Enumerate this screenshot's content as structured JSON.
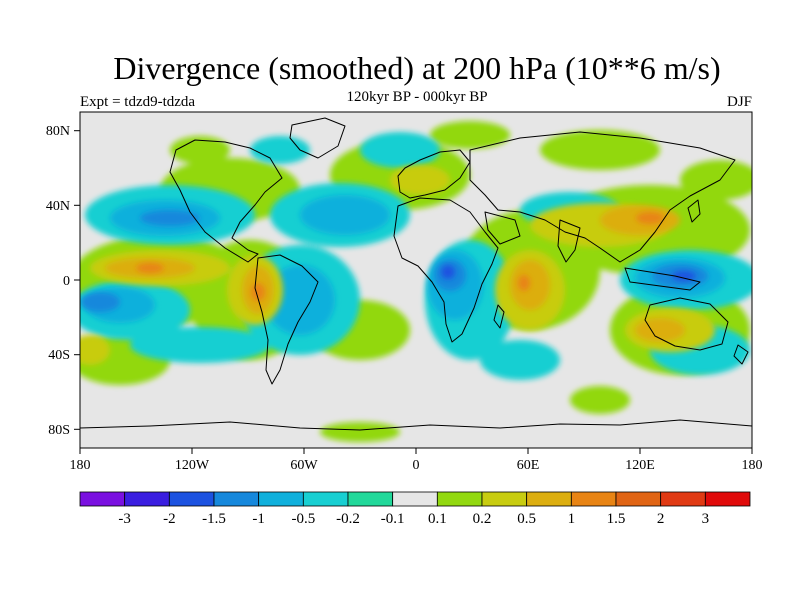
{
  "header": {
    "title": "Divergence (smoothed) at 200 hPa (10**6 m/s)",
    "subtitle": "120kyr BP - 000kyr BP",
    "experiment": "Expt = tdzd9-tdzda",
    "season": "DJF"
  },
  "axes": {
    "lat_labels": [
      "80N",
      "40N",
      "0",
      "40S",
      "80S"
    ],
    "lon_labels": [
      "180",
      "120W",
      "60W",
      "0",
      "60E",
      "120E",
      "180"
    ]
  },
  "colorbar": {
    "labels": [
      "-3",
      "-2",
      "-1.5",
      "-1",
      "-0.5",
      "-0.2",
      "-0.1",
      "0.1",
      "0.2",
      "0.5",
      "1",
      "1.5",
      "2",
      "3"
    ],
    "colors": [
      "#7a10e0",
      "#3a1ee0",
      "#1c52e0",
      "#1688dc",
      "#10b0dc",
      "#18cfd2",
      "#22d89a",
      "#e6e6e6",
      "#92d810",
      "#c8cc10",
      "#dcae10",
      "#e88414",
      "#e06414",
      "#e03a14",
      "#e00a0a"
    ]
  },
  "field": {
    "background": "#e6e6e6",
    "neg_blue": "#1c52e0",
    "neg_mid": "#1688dc",
    "neg_light": "#10b0dc",
    "neg_pale": "#18cfd2",
    "pos_green": "#92d810",
    "pos_yellow": "#c8cc10",
    "pos_orange": "#dcae10",
    "pos_red": "#e88414"
  }
}
